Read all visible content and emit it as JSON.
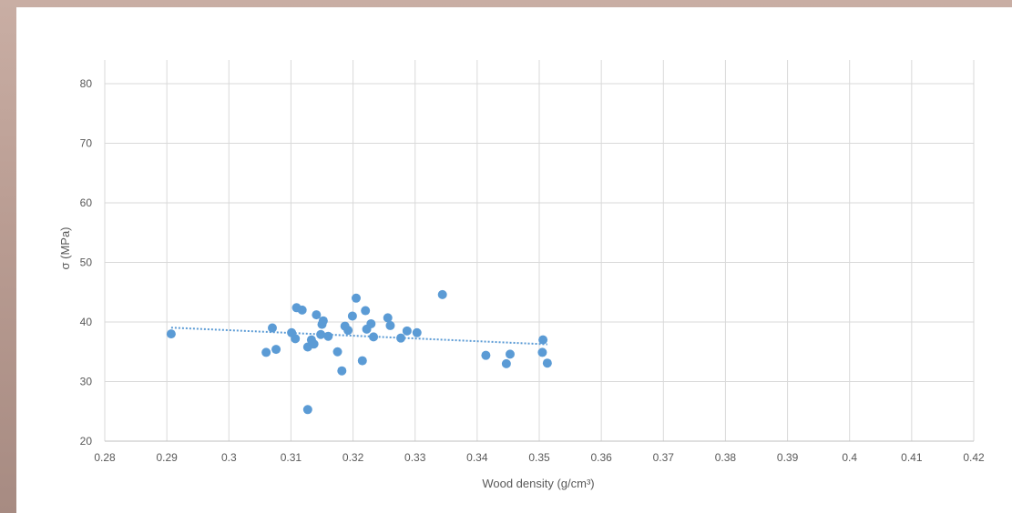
{
  "colors": {
    "background": "#b99c92",
    "panel": "#ffffff",
    "grid": "#d9d9d9",
    "point": "#5b9bd5",
    "trendline": "#5b9bd5",
    "text": "#595959"
  },
  "chart_data": {
    "type": "scatter",
    "title": "",
    "xlabel": "Wood density (g/cm³)",
    "ylabel": "σ (MPa)",
    "xlim": [
      0.28,
      0.42
    ],
    "ylim": [
      20,
      80
    ],
    "grid": true,
    "x_ticks": [
      "0.28",
      "0.29",
      "0.3",
      "0.31",
      "0.32",
      "0.33",
      "0.34",
      "0.35",
      "0.36",
      "0.37",
      "0.38",
      "0.39",
      "0.4",
      "0.41",
      "0.42"
    ],
    "y_ticks": [
      "20",
      "30",
      "40",
      "50",
      "60",
      "70",
      "80"
    ],
    "series": [
      {
        "points": [
          [
            0.2907,
            38.0
          ],
          [
            0.306,
            34.9
          ],
          [
            0.307,
            39.0
          ],
          [
            0.3076,
            35.4
          ],
          [
            0.3101,
            38.2
          ],
          [
            0.3107,
            37.2
          ],
          [
            0.3109,
            42.4
          ],
          [
            0.3118,
            42.0
          ],
          [
            0.3127,
            35.8
          ],
          [
            0.3127,
            25.3
          ],
          [
            0.3133,
            37.0
          ],
          [
            0.3137,
            36.3
          ],
          [
            0.3141,
            41.2
          ],
          [
            0.3148,
            37.9
          ],
          [
            0.315,
            39.6
          ],
          [
            0.3152,
            40.2
          ],
          [
            0.316,
            37.6
          ],
          [
            0.3175,
            35.0
          ],
          [
            0.3182,
            31.8
          ],
          [
            0.3187,
            39.3
          ],
          [
            0.3192,
            38.6
          ],
          [
            0.3199,
            41.0
          ],
          [
            0.3205,
            44.0
          ],
          [
            0.3215,
            33.5
          ],
          [
            0.322,
            41.9
          ],
          [
            0.3222,
            38.8
          ],
          [
            0.3229,
            39.7
          ],
          [
            0.3233,
            37.5
          ],
          [
            0.3256,
            40.7
          ],
          [
            0.326,
            39.4
          ],
          [
            0.3277,
            37.3
          ],
          [
            0.3287,
            38.5
          ],
          [
            0.3303,
            38.2
          ],
          [
            0.3344,
            44.6
          ],
          [
            0.3414,
            34.4
          ],
          [
            0.3447,
            33.0
          ],
          [
            0.3453,
            34.6
          ],
          [
            0.3505,
            34.9
          ],
          [
            0.3506,
            37.0
          ],
          [
            0.3513,
            33.1
          ]
        ]
      }
    ],
    "trendline": {
      "style": "dotted",
      "x": [
        0.2907,
        0.3513
      ],
      "y": [
        39.05,
        36.25
      ]
    }
  }
}
